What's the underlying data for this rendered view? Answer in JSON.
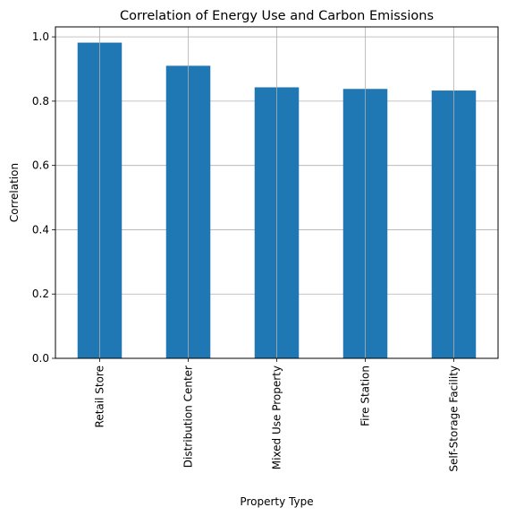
{
  "chart_data": {
    "type": "bar",
    "title": "Correlation of Energy Use and Carbon Emissions",
    "xlabel": "Property Type",
    "ylabel": "Correlation",
    "categories": [
      "Retail Store",
      "Distribution Center",
      "Mixed Use Property",
      "Fire Station",
      "Self-Storage Facility"
    ],
    "values": [
      0.982,
      0.91,
      0.843,
      0.838,
      0.833
    ],
    "ylim": [
      0,
      1.031
    ],
    "yticks": [
      0.0,
      0.2,
      0.4,
      0.6,
      0.8,
      1.0
    ],
    "ytick_labels": [
      "0.0",
      "0.2",
      "0.4",
      "0.6",
      "0.8",
      "1.0"
    ],
    "grid": true,
    "bar_color": "#1f77b4",
    "grid_color": "#b0b0b0"
  }
}
